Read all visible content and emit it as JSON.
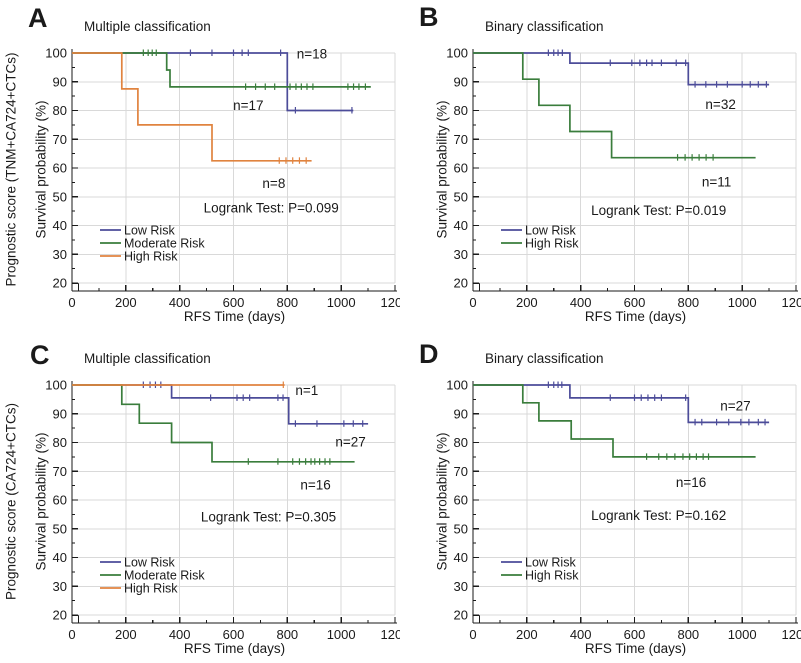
{
  "colors": {
    "low_risk": "#4c4c99",
    "moderate_risk": "#3a7d3c",
    "high_risk": "#e0833f",
    "grid": "#d9d9d9",
    "axis": "#1a1a1a",
    "text": "#1a1a1a",
    "background": "#ffffff"
  },
  "chart_data": [
    {
      "type": "line",
      "panel_label": "A",
      "title": "Multiple classification",
      "outer_ylabel": "Prognostic score (TNM+CA724+CTCs)",
      "ylabel": "Survival probability (%)",
      "xlabel": "RFS Time (days)",
      "xlim": [
        0,
        1200
      ],
      "ylim": [
        20,
        100
      ],
      "xticks": [
        0,
        200,
        400,
        600,
        800,
        1000,
        1200
      ],
      "yticks": [
        20,
        30,
        40,
        50,
        60,
        70,
        80,
        90,
        100
      ],
      "logrank": {
        "text": "Logrank Test: P=0.099",
        "x": 740,
        "y": 46
      },
      "series": [
        {
          "name": "Low Risk",
          "color": "#4c4c99",
          "steps": [
            [
              0,
              100
            ],
            [
              800,
              100
            ],
            [
              800,
              80
            ],
            [
              1045,
              80
            ]
          ],
          "censors": [
            [
              440,
              100
            ],
            [
              520,
              100
            ],
            [
              600,
              100
            ],
            [
              632,
              100
            ],
            [
              655,
              100
            ],
            [
              775,
              100
            ],
            [
              830,
              80
            ],
            [
              1040,
              80
            ]
          ],
          "n_label": "n=18",
          "n_x": 835,
          "n_y": 99.5,
          "n_anchor": "start"
        },
        {
          "name": "Moderate Risk",
          "color": "#3a7d3c",
          "steps": [
            [
              0,
              100
            ],
            [
              352,
              100
            ],
            [
              352,
              94.1
            ],
            [
              364,
              94.1
            ],
            [
              364,
              88.2
            ],
            [
              1110,
              88.2
            ]
          ],
          "censors": [
            [
              265,
              100
            ],
            [
              283,
              100
            ],
            [
              298,
              100
            ],
            [
              313,
              100
            ],
            [
              645,
              88.2
            ],
            [
              682,
              88.2
            ],
            [
              718,
              88.2
            ],
            [
              753,
              88.2
            ],
            [
              810,
              88.2
            ],
            [
              832,
              88.2
            ],
            [
              852,
              88.2
            ],
            [
              873,
              88.2
            ],
            [
              895,
              88.2
            ],
            [
              1025,
              88.2
            ],
            [
              1046,
              88.2
            ],
            [
              1066,
              88.2
            ],
            [
              1090,
              88.2
            ]
          ],
          "n_label": "n=17",
          "n_x": 655,
          "n_y": 81.5,
          "n_anchor": "middle"
        },
        {
          "name": "High Risk",
          "color": "#e0833f",
          "steps": [
            [
              0,
              100
            ],
            [
              185,
              100
            ],
            [
              185,
              87.5
            ],
            [
              245,
              87.5
            ],
            [
              245,
              75
            ],
            [
              520,
              75
            ],
            [
              520,
              62.5
            ],
            [
              890,
              62.5
            ]
          ],
          "censors": [
            [
              770,
              62.5
            ],
            [
              795,
              62.5
            ],
            [
              820,
              62.5
            ],
            [
              845,
              62.5
            ],
            [
              870,
              62.5
            ]
          ],
          "n_label": "n=8",
          "n_x": 750,
          "n_y": 54.5,
          "n_anchor": "middle"
        }
      ]
    },
    {
      "type": "line",
      "panel_label": "B",
      "title": "Binary classification",
      "ylabel": "Survival probability (%)",
      "xlabel": "RFS Time (days)",
      "xlim": [
        0,
        1200
      ],
      "ylim": [
        20,
        100
      ],
      "xticks": [
        0,
        200,
        400,
        600,
        800,
        1000,
        1200
      ],
      "yticks": [
        20,
        30,
        40,
        50,
        60,
        70,
        80,
        90,
        100
      ],
      "logrank": {
        "text": "Logrank Test: P=0.019",
        "x": 690,
        "y": 45
      },
      "series": [
        {
          "name": "Low Risk",
          "color": "#4c4c99",
          "steps": [
            [
              0,
              100
            ],
            [
              360,
              100
            ],
            [
              360,
              96.5
            ],
            [
              800,
              96.5
            ],
            [
              800,
              89
            ],
            [
              1100,
              89
            ]
          ],
          "censors": [
            [
              280,
              100
            ],
            [
              300,
              100
            ],
            [
              316,
              100
            ],
            [
              332,
              100
            ],
            [
              510,
              96.5
            ],
            [
              590,
              96.5
            ],
            [
              620,
              96.5
            ],
            [
              645,
              96.5
            ],
            [
              665,
              96.5
            ],
            [
              700,
              96.5
            ],
            [
              755,
              96.5
            ],
            [
              790,
              96.5
            ],
            [
              825,
              89
            ],
            [
              865,
              89
            ],
            [
              905,
              89
            ],
            [
              945,
              89
            ],
            [
              1000,
              89
            ],
            [
              1030,
              89
            ],
            [
              1060,
              89
            ],
            [
              1090,
              89
            ]
          ],
          "n_label": "n=32",
          "n_x": 920,
          "n_y": 82,
          "n_anchor": "middle"
        },
        {
          "name": "High Risk",
          "color": "#3a7d3c",
          "steps": [
            [
              0,
              100
            ],
            [
              185,
              100
            ],
            [
              185,
              90.9
            ],
            [
              245,
              90.9
            ],
            [
              245,
              81.8
            ],
            [
              360,
              81.8
            ],
            [
              360,
              72.7
            ],
            [
              515,
              72.7
            ],
            [
              515,
              63.6
            ],
            [
              1050,
              63.6
            ]
          ],
          "censors": [
            [
              760,
              63.6
            ],
            [
              788,
              63.6
            ],
            [
              814,
              63.6
            ],
            [
              840,
              63.6
            ],
            [
              866,
              63.6
            ],
            [
              892,
              63.6
            ]
          ],
          "n_label": "n=11",
          "n_x": 905,
          "n_y": 55,
          "n_anchor": "middle"
        }
      ]
    },
    {
      "type": "line",
      "panel_label": "C",
      "title": "Multiple classification",
      "outer_ylabel": "Prognostic score (CA724+CTCs)",
      "ylabel": "Survival probability (%)",
      "xlabel": "RFS Time (days)",
      "xlim": [
        0,
        1200
      ],
      "ylim": [
        20,
        100
      ],
      "xticks": [
        0,
        200,
        400,
        600,
        800,
        1000,
        1200
      ],
      "yticks": [
        20,
        30,
        40,
        50,
        60,
        70,
        80,
        90,
        100
      ],
      "logrank": {
        "text": "Logrank Test: P=0.305",
        "x": 730,
        "y": 54
      },
      "series": [
        {
          "name": "Low Risk",
          "color": "#4c4c99",
          "steps": [
            [
              0,
              100
            ],
            [
              370,
              100
            ],
            [
              370,
              95.5
            ],
            [
              805,
              95.5
            ],
            [
              805,
              86.5
            ],
            [
              1100,
              86.5
            ]
          ],
          "censors": [
            [
              265,
              100
            ],
            [
              290,
              100
            ],
            [
              310,
              100
            ],
            [
              330,
              100
            ],
            [
              515,
              95.5
            ],
            [
              613,
              95.5
            ],
            [
              636,
              95.5
            ],
            [
              660,
              95.5
            ],
            [
              765,
              95.5
            ],
            [
              784,
              95.5
            ],
            [
              830,
              86.5
            ],
            [
              910,
              86.5
            ],
            [
              1010,
              86.5
            ],
            [
              1045,
              86.5
            ],
            [
              1080,
              86.5
            ]
          ],
          "n_label": "n=27",
          "n_x": 1035,
          "n_y": 80,
          "n_anchor": "middle"
        },
        {
          "name": "Moderate Risk",
          "color": "#3a7d3c",
          "steps": [
            [
              0,
              100
            ],
            [
              185,
              100
            ],
            [
              185,
              93.3
            ],
            [
              250,
              93.3
            ],
            [
              250,
              86.7
            ],
            [
              370,
              86.7
            ],
            [
              370,
              80
            ],
            [
              520,
              80
            ],
            [
              520,
              73.3
            ],
            [
              1050,
              73.3
            ]
          ],
          "censors": [
            [
              655,
              73.3
            ],
            [
              765,
              73.3
            ],
            [
              820,
              73.3
            ],
            [
              845,
              73.3
            ],
            [
              868,
              73.3
            ],
            [
              888,
              73.3
            ],
            [
              902,
              73.3
            ],
            [
              920,
              73.3
            ],
            [
              940,
              73.3
            ],
            [
              958,
              73.3
            ]
          ],
          "n_label": "n=16",
          "n_x": 905,
          "n_y": 65,
          "n_anchor": "middle"
        },
        {
          "name": "High Risk",
          "color": "#e0833f",
          "steps": [
            [
              0,
              100
            ],
            [
              790,
              100
            ]
          ],
          "censors": [
            [
              785,
              100
            ]
          ],
          "n_label": "n=1",
          "n_x": 830,
          "n_y": 98,
          "n_anchor": "start"
        }
      ]
    },
    {
      "type": "line",
      "panel_label": "D",
      "title": "Binary classification",
      "ylabel": "Survival probability (%)",
      "xlabel": "RFS Time (days)",
      "xlim": [
        0,
        1200
      ],
      "ylim": [
        20,
        100
      ],
      "xticks": [
        0,
        200,
        400,
        600,
        800,
        1000,
        1200
      ],
      "yticks": [
        20,
        30,
        40,
        50,
        60,
        70,
        80,
        90,
        100
      ],
      "logrank": {
        "text": "Logrank Test: P=0.162",
        "x": 690,
        "y": 54.5
      },
      "series": [
        {
          "name": "Low Risk",
          "color": "#4c4c99",
          "steps": [
            [
              0,
              100
            ],
            [
              360,
              100
            ],
            [
              360,
              95.5
            ],
            [
              800,
              95.5
            ],
            [
              800,
              87
            ],
            [
              1100,
              87
            ]
          ],
          "censors": [
            [
              280,
              100
            ],
            [
              300,
              100
            ],
            [
              316,
              100
            ],
            [
              330,
              100
            ],
            [
              510,
              95.5
            ],
            [
              600,
              95.5
            ],
            [
              625,
              95.5
            ],
            [
              650,
              95.5
            ],
            [
              675,
              95.5
            ],
            [
              700,
              95.5
            ],
            [
              790,
              95.5
            ],
            [
              825,
              87
            ],
            [
              850,
              87
            ],
            [
              905,
              87
            ],
            [
              950,
              87
            ],
            [
              995,
              87
            ],
            [
              1025,
              87
            ],
            [
              1060,
              87
            ],
            [
              1085,
              87
            ]
          ],
          "n_label": "n=27",
          "n_x": 975,
          "n_y": 92.5,
          "n_anchor": "middle"
        },
        {
          "name": "High Risk",
          "color": "#3a7d3c",
          "steps": [
            [
              0,
              100
            ],
            [
              185,
              100
            ],
            [
              185,
              93.8
            ],
            [
              245,
              93.8
            ],
            [
              245,
              87.5
            ],
            [
              365,
              87.5
            ],
            [
              365,
              81.2
            ],
            [
              520,
              81.2
            ],
            [
              520,
              75
            ],
            [
              1050,
              75
            ]
          ],
          "censors": [
            [
              645,
              75
            ],
            [
              690,
              75
            ],
            [
              720,
              75
            ],
            [
              750,
              75
            ],
            [
              780,
              75
            ],
            [
              805,
              75
            ],
            [
              830,
              75
            ],
            [
              855,
              75
            ],
            [
              875,
              75
            ]
          ],
          "n_label": "n=16",
          "n_x": 810,
          "n_y": 66,
          "n_anchor": "middle"
        }
      ]
    }
  ]
}
